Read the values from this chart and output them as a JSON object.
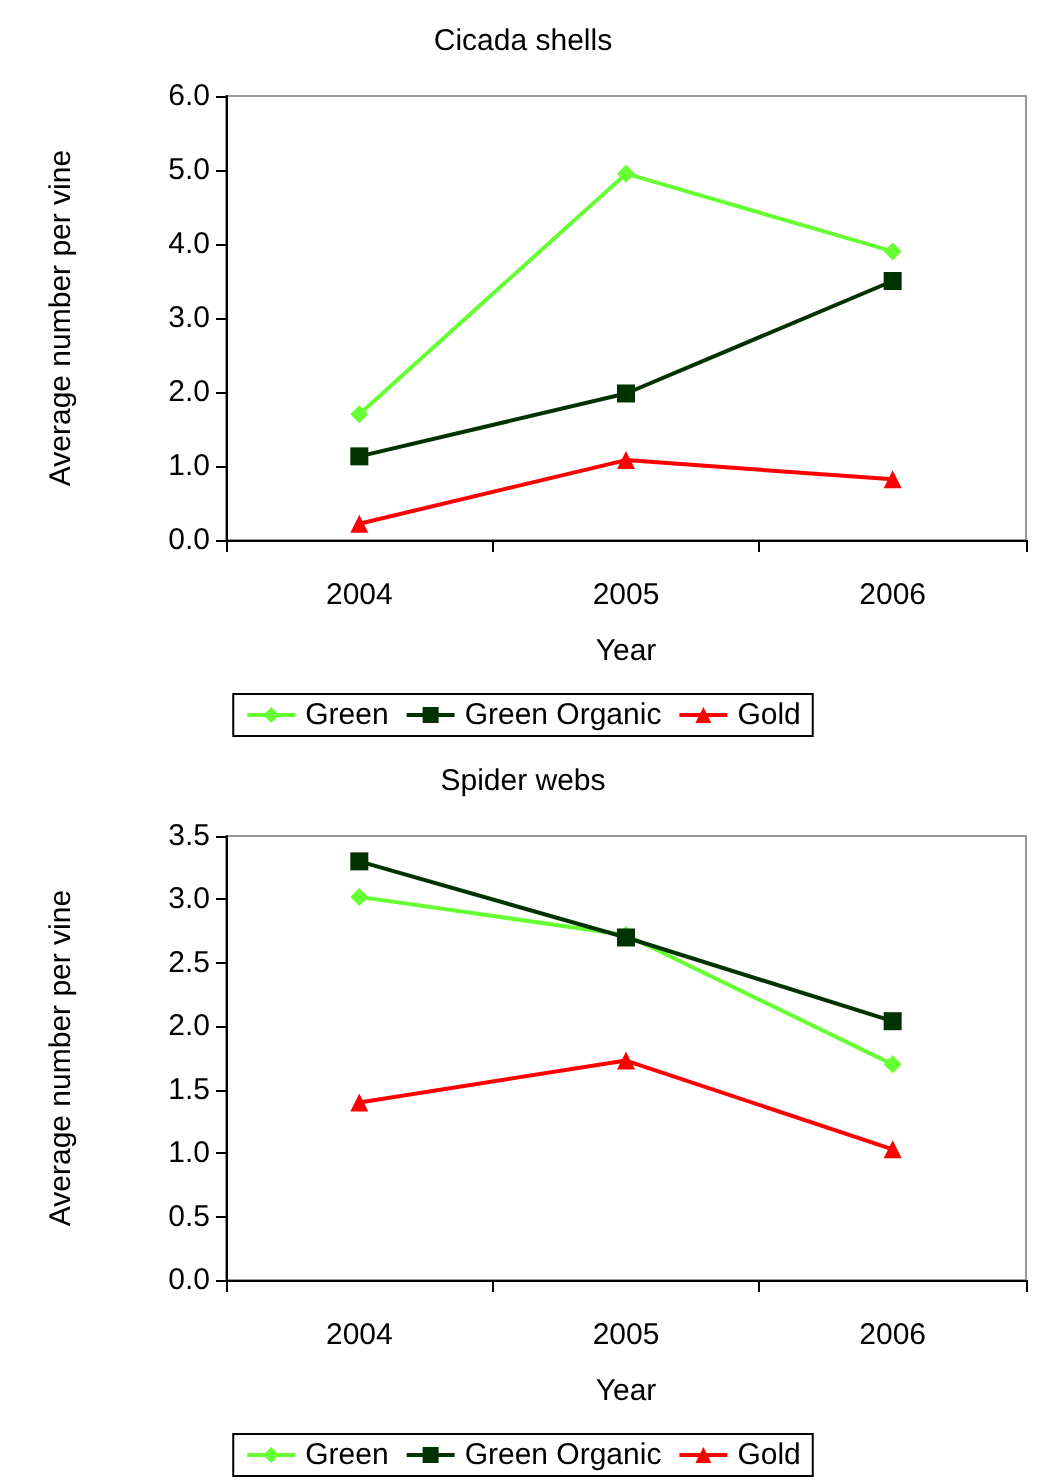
{
  "chart_data": [
    {
      "type": "line",
      "title": "Cicada shells",
      "xlabel": "Year",
      "ylabel": "Average number per vine",
      "categories": [
        "2004",
        "2005",
        "2006"
      ],
      "series": [
        {
          "name": "Green",
          "color": "#66ff33",
          "marker": "diamond",
          "values": [
            1.7,
            4.95,
            3.9
          ]
        },
        {
          "name": "Green Organic",
          "color": "#003300",
          "marker": "square",
          "values": [
            1.13,
            1.98,
            3.5
          ]
        },
        {
          "name": "Gold",
          "color": "#ff0000",
          "marker": "triangle",
          "values": [
            0.22,
            1.08,
            0.82
          ]
        }
      ],
      "ylim": [
        0,
        6
      ],
      "yticks": [
        {
          "value": 0,
          "label": "0.0"
        },
        {
          "value": 1,
          "label": "1.0"
        },
        {
          "value": 2,
          "label": "2.0"
        },
        {
          "value": 3,
          "label": "3.0"
        },
        {
          "value": 4,
          "label": "4.0"
        },
        {
          "value": 5,
          "label": "5.0"
        },
        {
          "value": 6,
          "label": "6.0"
        }
      ],
      "grid": false,
      "legend": "bottom"
    },
    {
      "type": "line",
      "title": "Spider webs",
      "xlabel": "Year",
      "ylabel": "Average number per vine",
      "categories": [
        "2004",
        "2005",
        "2006"
      ],
      "series": [
        {
          "name": "Green",
          "color": "#66ff33",
          "marker": "diamond",
          "values": [
            3.02,
            2.72,
            1.7
          ]
        },
        {
          "name": "Green Organic",
          "color": "#003300",
          "marker": "square",
          "values": [
            3.3,
            2.7,
            2.04
          ]
        },
        {
          "name": "Gold",
          "color": "#ff0000",
          "marker": "triangle",
          "values": [
            1.4,
            1.73,
            1.03
          ]
        }
      ],
      "ylim": [
        0,
        3.5
      ],
      "yticks": [
        {
          "value": 0,
          "label": "0.0"
        },
        {
          "value": 0.5,
          "label": "0.5"
        },
        {
          "value": 1,
          "label": "1.0"
        },
        {
          "value": 1.5,
          "label": "1.5"
        },
        {
          "value": 2,
          "label": "2.0"
        },
        {
          "value": 2.5,
          "label": "2.5"
        },
        {
          "value": 3,
          "label": "3.0"
        },
        {
          "value": 3.5,
          "label": "3.5"
        }
      ],
      "grid": false,
      "legend": "bottom"
    }
  ]
}
